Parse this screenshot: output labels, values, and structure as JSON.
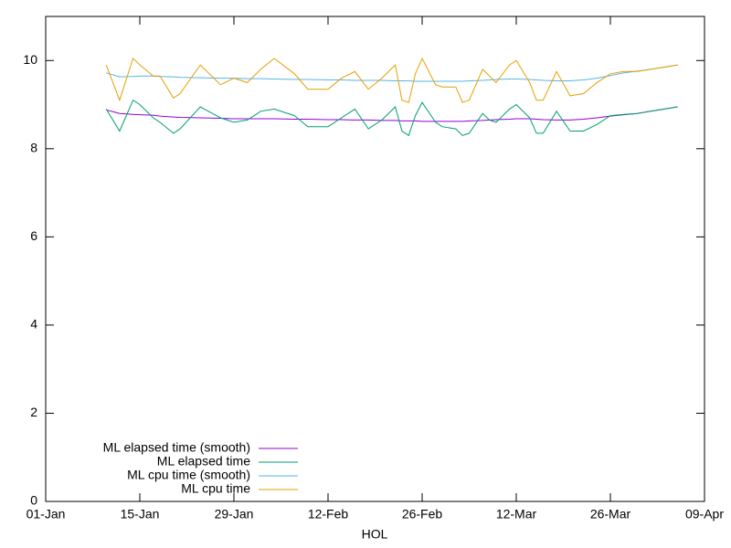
{
  "chart_data": {
    "type": "line",
    "x_label": "HOL",
    "x": [
      9,
      11,
      13,
      14,
      16,
      17,
      19,
      20,
      23,
      26,
      28,
      30,
      32,
      34,
      37,
      39,
      42,
      44,
      46,
      48,
      50,
      52,
      53,
      54,
      55,
      56,
      58,
      59,
      61,
      62,
      63,
      65,
      66,
      67,
      69,
      70,
      72,
      73,
      74,
      76,
      78,
      80,
      82,
      84,
      86,
      88,
      90,
      92,
      94
    ],
    "series": [
      {
        "name": "ML elapsed time (smooth)",
        "color": "#9400d3",
        "values": [
          8.88,
          8.8,
          8.78,
          8.77,
          8.76,
          8.74,
          8.72,
          8.71,
          8.7,
          8.69,
          8.68,
          8.68,
          8.68,
          8.68,
          8.67,
          8.67,
          8.66,
          8.66,
          8.65,
          8.65,
          8.64,
          8.64,
          8.63,
          8.63,
          8.63,
          8.62,
          8.62,
          8.62,
          8.62,
          8.62,
          8.63,
          8.64,
          8.65,
          8.66,
          8.67,
          8.68,
          8.68,
          8.67,
          8.66,
          8.65,
          8.65,
          8.67,
          8.7,
          8.74,
          8.77,
          8.8,
          8.85,
          8.9,
          8.95
        ]
      },
      {
        "name": "ML elapsed time",
        "color": "#009e73",
        "values": [
          8.9,
          8.4,
          9.1,
          9.0,
          8.7,
          8.6,
          8.35,
          8.45,
          8.95,
          8.7,
          8.6,
          8.65,
          8.85,
          8.9,
          8.75,
          8.5,
          8.5,
          8.7,
          8.9,
          8.45,
          8.65,
          8.95,
          8.4,
          8.3,
          8.75,
          9.05,
          8.6,
          8.5,
          8.45,
          8.3,
          8.35,
          8.8,
          8.65,
          8.6,
          8.9,
          9.0,
          8.7,
          8.35,
          8.35,
          8.85,
          8.4,
          8.4,
          8.55,
          8.75,
          8.78,
          8.8,
          8.85,
          8.9,
          8.95
        ]
      },
      {
        "name": "ML cpu time (smooth)",
        "color": "#56b4e9",
        "values": [
          9.72,
          9.63,
          9.64,
          9.65,
          9.65,
          9.64,
          9.63,
          9.62,
          9.61,
          9.6,
          9.6,
          9.59,
          9.59,
          9.58,
          9.57,
          9.57,
          9.56,
          9.56,
          9.55,
          9.55,
          9.55,
          9.54,
          9.54,
          9.54,
          9.53,
          9.53,
          9.53,
          9.53,
          9.53,
          9.53,
          9.54,
          9.55,
          9.56,
          9.57,
          9.58,
          9.58,
          9.57,
          9.56,
          9.55,
          9.54,
          9.54,
          9.56,
          9.6,
          9.66,
          9.72,
          9.76,
          9.8,
          9.85,
          9.9
        ]
      },
      {
        "name": "ML cpu time",
        "color": "#e69f00",
        "values": [
          9.9,
          9.1,
          10.05,
          9.9,
          9.65,
          9.65,
          9.15,
          9.25,
          9.9,
          9.45,
          9.6,
          9.5,
          9.8,
          10.05,
          9.7,
          9.35,
          9.35,
          9.6,
          9.75,
          9.35,
          9.6,
          9.9,
          9.1,
          9.05,
          9.7,
          10.05,
          9.45,
          9.4,
          9.4,
          9.05,
          9.1,
          9.8,
          9.65,
          9.5,
          9.9,
          10.0,
          9.5,
          9.1,
          9.1,
          9.75,
          9.2,
          9.25,
          9.5,
          9.7,
          9.75,
          9.75,
          9.8,
          9.85,
          9.9
        ]
      }
    ],
    "xlim": [
      0,
      98
    ],
    "xticks": [
      {
        "value": 0,
        "label": "01-Jan"
      },
      {
        "value": 14,
        "label": "15-Jan"
      },
      {
        "value": 28,
        "label": "29-Jan"
      },
      {
        "value": 42,
        "label": "12-Feb"
      },
      {
        "value": 56,
        "label": "26-Feb"
      },
      {
        "value": 70,
        "label": "12-Mar"
      },
      {
        "value": 84,
        "label": "26-Mar"
      },
      {
        "value": 98,
        "label": "09-Apr"
      }
    ],
    "ylim": [
      0,
      11
    ],
    "yticks": [
      0,
      2,
      4,
      6,
      8,
      10
    ],
    "legend": "bottom left"
  }
}
